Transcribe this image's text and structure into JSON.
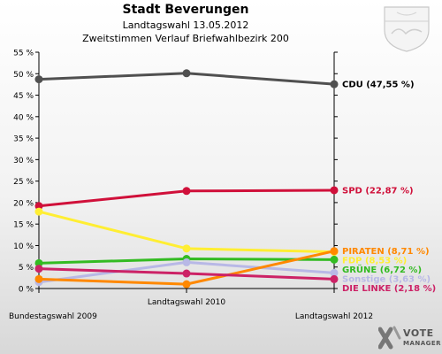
{
  "header": {
    "title": "Stadt Beverungen",
    "subtitle1": "Landtagswahl 13.05.2012",
    "subtitle2": "Zweitstimmen Verlauf Briefwahlbezirk 200"
  },
  "logo": {
    "name": "VOTE",
    "sub": "MANAGER"
  },
  "chart_data": {
    "type": "line",
    "x": [
      "Bundestagswahl 2009",
      "Landtagswahl 2010",
      "Landtagswahl 2012"
    ],
    "ylim": [
      0,
      55
    ],
    "yticks": [
      0,
      5,
      10,
      15,
      20,
      25,
      30,
      35,
      40,
      45,
      50,
      55
    ],
    "ytick_labels": [
      "0 %",
      "5 %",
      "10 %",
      "15 %",
      "20 %",
      "25 %",
      "30 %",
      "35 %",
      "40 %",
      "45 %",
      "50 %",
      "55 %"
    ],
    "grid": false,
    "series": [
      {
        "name": "CDU",
        "label": "CDU (47,55 %)",
        "color": "#505050",
        "values": [
          48.7,
          50.1,
          47.55
        ]
      },
      {
        "name": "SPD",
        "label": "SPD (22,87 %)",
        "color": "#d0103a",
        "values": [
          19.2,
          22.7,
          22.87
        ]
      },
      {
        "name": "FDP",
        "label": "FDP (8,53 %)",
        "color": "#ffee33",
        "values": [
          17.9,
          9.3,
          8.53
        ]
      },
      {
        "name": "GRÜNE",
        "label": "GRÜNE (6,72 %)",
        "color": "#33bb22",
        "values": [
          5.9,
          6.9,
          6.72
        ]
      },
      {
        "name": "Sonstige",
        "label": "Sonstige (3,63 %)",
        "color": "#b8b8e6",
        "values": [
          1.5,
          6.1,
          3.63
        ]
      },
      {
        "name": "PIRATEN",
        "label": "PIRATEN (8,71 %)",
        "color": "#ff8800",
        "values": [
          2.2,
          1.0,
          8.71
        ]
      },
      {
        "name": "DIE LINKE",
        "label": "DIE LINKE (2,18 %)",
        "color": "#cc2266",
        "values": [
          4.6,
          3.5,
          2.18
        ]
      }
    ]
  }
}
